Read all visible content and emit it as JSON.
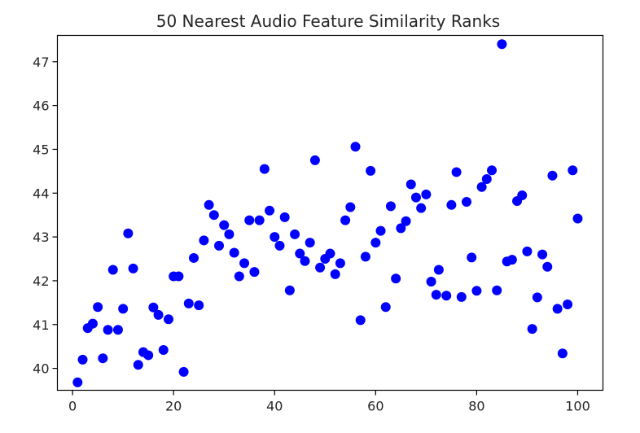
{
  "chart_data": {
    "type": "scatter",
    "title": "50 Nearest Audio Feature Similarity Ranks",
    "xlabel": "",
    "ylabel": "",
    "xlim": [
      -3,
      105
    ],
    "ylim": [
      39.5,
      47.6
    ],
    "xticks": [
      0,
      20,
      40,
      60,
      80,
      100
    ],
    "yticks": [
      40,
      41,
      42,
      43,
      44,
      45,
      46,
      47
    ],
    "grid": false,
    "marker_color": "#0000ff",
    "points": [
      {
        "x": 1,
        "y": 39.68
      },
      {
        "x": 2,
        "y": 40.2
      },
      {
        "x": 3,
        "y": 40.92
      },
      {
        "x": 4,
        "y": 41.02
      },
      {
        "x": 5,
        "y": 41.4
      },
      {
        "x": 6,
        "y": 40.23
      },
      {
        "x": 7,
        "y": 40.88
      },
      {
        "x": 8,
        "y": 42.25
      },
      {
        "x": 9,
        "y": 40.88
      },
      {
        "x": 10,
        "y": 41.36
      },
      {
        "x": 11,
        "y": 43.08
      },
      {
        "x": 12,
        "y": 42.28
      },
      {
        "x": 13,
        "y": 40.08
      },
      {
        "x": 14,
        "y": 40.37
      },
      {
        "x": 15,
        "y": 40.3
      },
      {
        "x": 16,
        "y": 41.39
      },
      {
        "x": 17,
        "y": 41.22
      },
      {
        "x": 18,
        "y": 40.42
      },
      {
        "x": 19,
        "y": 41.12
      },
      {
        "x": 20,
        "y": 42.1
      },
      {
        "x": 21,
        "y": 42.1
      },
      {
        "x": 22,
        "y": 39.92
      },
      {
        "x": 23,
        "y": 41.48
      },
      {
        "x": 24,
        "y": 42.52
      },
      {
        "x": 25,
        "y": 41.44
      },
      {
        "x": 26,
        "y": 42.92
      },
      {
        "x": 27,
        "y": 43.73
      },
      {
        "x": 28,
        "y": 43.5
      },
      {
        "x": 29,
        "y": 42.8
      },
      {
        "x": 30,
        "y": 43.27
      },
      {
        "x": 31,
        "y": 43.06
      },
      {
        "x": 32,
        "y": 42.64
      },
      {
        "x": 33,
        "y": 42.1
      },
      {
        "x": 34,
        "y": 42.4
      },
      {
        "x": 35,
        "y": 43.38
      },
      {
        "x": 36,
        "y": 42.2
      },
      {
        "x": 37,
        "y": 43.38
      },
      {
        "x": 38,
        "y": 44.55
      },
      {
        "x": 39,
        "y": 43.6
      },
      {
        "x": 40,
        "y": 43.0
      },
      {
        "x": 41,
        "y": 42.8
      },
      {
        "x": 42,
        "y": 43.45
      },
      {
        "x": 43,
        "y": 41.78
      },
      {
        "x": 44,
        "y": 43.06
      },
      {
        "x": 45,
        "y": 42.62
      },
      {
        "x": 46,
        "y": 42.45
      },
      {
        "x": 47,
        "y": 42.87
      },
      {
        "x": 48,
        "y": 44.75
      },
      {
        "x": 49,
        "y": 42.3
      },
      {
        "x": 50,
        "y": 42.5
      },
      {
        "x": 51,
        "y": 42.62
      },
      {
        "x": 52,
        "y": 42.15
      },
      {
        "x": 53,
        "y": 42.4
      },
      {
        "x": 54,
        "y": 43.38
      },
      {
        "x": 55,
        "y": 43.68
      },
      {
        "x": 56,
        "y": 45.06
      },
      {
        "x": 57,
        "y": 41.1
      },
      {
        "x": 58,
        "y": 42.55
      },
      {
        "x": 59,
        "y": 44.51
      },
      {
        "x": 60,
        "y": 42.87
      },
      {
        "x": 61,
        "y": 43.14
      },
      {
        "x": 62,
        "y": 41.4
      },
      {
        "x": 63,
        "y": 43.7
      },
      {
        "x": 64,
        "y": 42.05
      },
      {
        "x": 65,
        "y": 43.2
      },
      {
        "x": 66,
        "y": 43.36
      },
      {
        "x": 67,
        "y": 44.2
      },
      {
        "x": 68,
        "y": 43.9
      },
      {
        "x": 69,
        "y": 43.66
      },
      {
        "x": 70,
        "y": 43.97
      },
      {
        "x": 71,
        "y": 41.98
      },
      {
        "x": 72,
        "y": 41.68
      },
      {
        "x": 72.5,
        "y": 42.25
      },
      {
        "x": 74,
        "y": 41.66
      },
      {
        "x": 75,
        "y": 43.73
      },
      {
        "x": 76,
        "y": 44.48
      },
      {
        "x": 77,
        "y": 41.63
      },
      {
        "x": 78,
        "y": 43.8
      },
      {
        "x": 79,
        "y": 42.53
      },
      {
        "x": 80,
        "y": 41.77
      },
      {
        "x": 81,
        "y": 44.14
      },
      {
        "x": 82,
        "y": 44.32
      },
      {
        "x": 83,
        "y": 44.52
      },
      {
        "x": 84,
        "y": 41.78
      },
      {
        "x": 85,
        "y": 47.4
      },
      {
        "x": 86,
        "y": 42.44
      },
      {
        "x": 87,
        "y": 42.48
      },
      {
        "x": 88,
        "y": 43.82
      },
      {
        "x": 89,
        "y": 43.95
      },
      {
        "x": 90,
        "y": 42.67
      },
      {
        "x": 91,
        "y": 40.9
      },
      {
        "x": 92,
        "y": 41.62
      },
      {
        "x": 93,
        "y": 42.6
      },
      {
        "x": 94,
        "y": 42.32
      },
      {
        "x": 95,
        "y": 44.4
      },
      {
        "x": 96,
        "y": 41.36
      },
      {
        "x": 97,
        "y": 40.34
      },
      {
        "x": 98,
        "y": 41.46
      },
      {
        "x": 99,
        "y": 44.52
      },
      {
        "x": 100,
        "y": 43.42
      }
    ]
  }
}
